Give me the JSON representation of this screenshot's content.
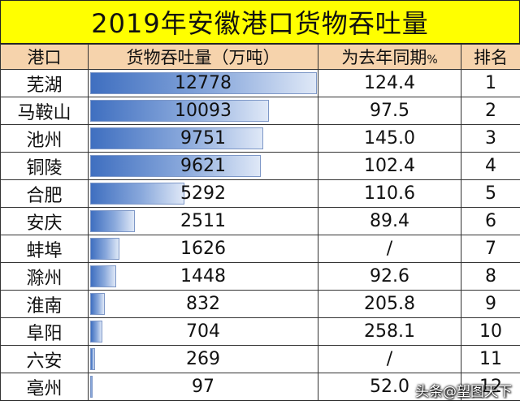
{
  "title": "2019年安徽港口货物吞吐量",
  "table": {
    "headers": {
      "port": "港口",
      "volume": "货物吞吐量（万吨）",
      "yoy": "为去年同期",
      "yoy_unit": "%",
      "rank": "排名"
    },
    "bar_max": 12778
  },
  "chart_data": {
    "type": "bar",
    "title": "2019年安徽港口货物吞吐量",
    "categories": [
      "芜湖",
      "马鞍山",
      "池州",
      "铜陵",
      "合肥",
      "安庆",
      "蚌埠",
      "滁州",
      "淮南",
      "阜阳",
      "六安",
      "亳州"
    ],
    "values": [
      12778,
      10093,
      9751,
      9621,
      5292,
      2511,
      1626,
      1448,
      832,
      704,
      269,
      97
    ],
    "yoy_percent": [
      "124.4",
      "97.5",
      "145.0",
      "102.4",
      "110.6",
      "89.4",
      "/",
      "92.6",
      "205.8",
      "258.1",
      "/",
      "52.0"
    ],
    "ranks": [
      "1",
      "2",
      "3",
      "4",
      "5",
      "6",
      "7",
      "8",
      "9",
      "10",
      "11",
      "12"
    ],
    "ylabel": "货物吞吐量（万吨）"
  },
  "watermark": "头条@望图天下",
  "colors": {
    "title_bg": "#ffff00",
    "header_bg": "#f6d3ac",
    "bar_start": "#3f6fc0",
    "bar_end": "#dfe8f7"
  }
}
